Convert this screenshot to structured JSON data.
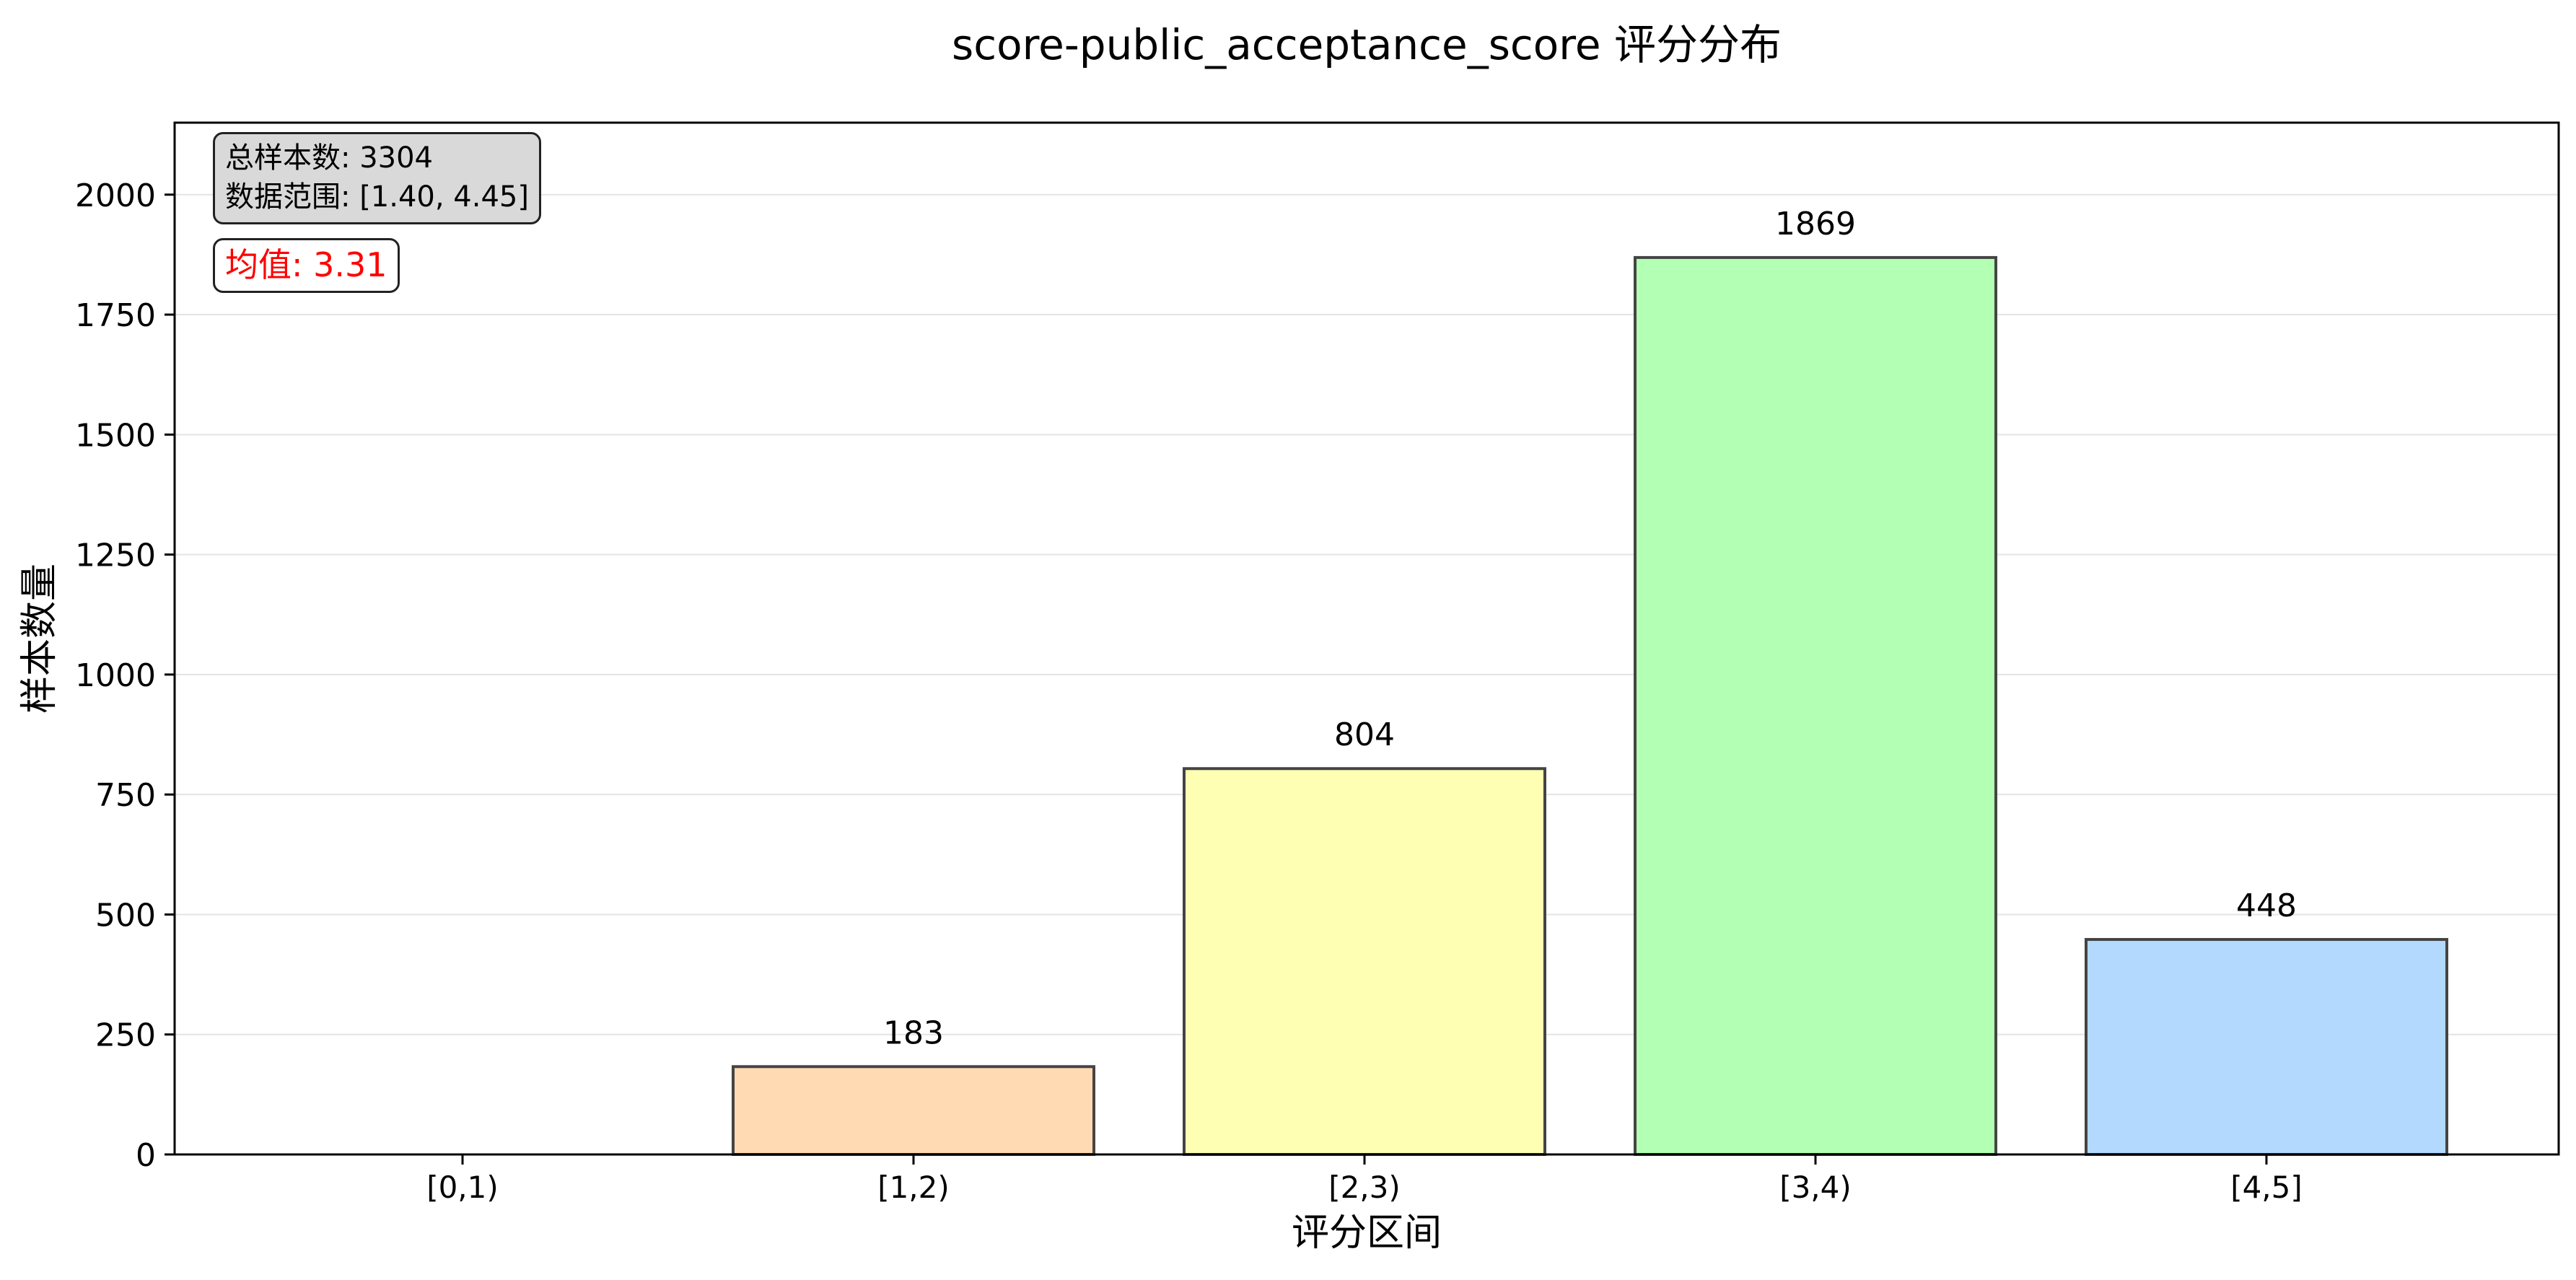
{
  "chart_data": {
    "type": "bar",
    "title": "score-public_acceptance_score 评分分布",
    "xlabel": "评分区间",
    "ylabel": "样本数量",
    "categories": [
      "[0,1)",
      "[1,2)",
      "[2,3)",
      "[3,4)",
      "[4,5]"
    ],
    "values": [
      0,
      183,
      804,
      1869,
      448
    ],
    "value_labels": [
      "",
      "183",
      "804",
      "1869",
      "448"
    ],
    "bar_colors": [
      "#ff9999",
      "#ffdab3",
      "#ffffb3",
      "#b3ffb3",
      "#b3d9ff"
    ],
    "ylim": [
      0,
      2150
    ],
    "yticks": [
      0,
      250,
      500,
      750,
      1000,
      1250,
      1500,
      1750,
      2000
    ],
    "grid": "y",
    "annotations": {
      "stats_line1": "总样本数: 3304",
      "stats_line2": "数据范围: [1.40, 4.45]",
      "mean": "均值: 3.31"
    }
  }
}
